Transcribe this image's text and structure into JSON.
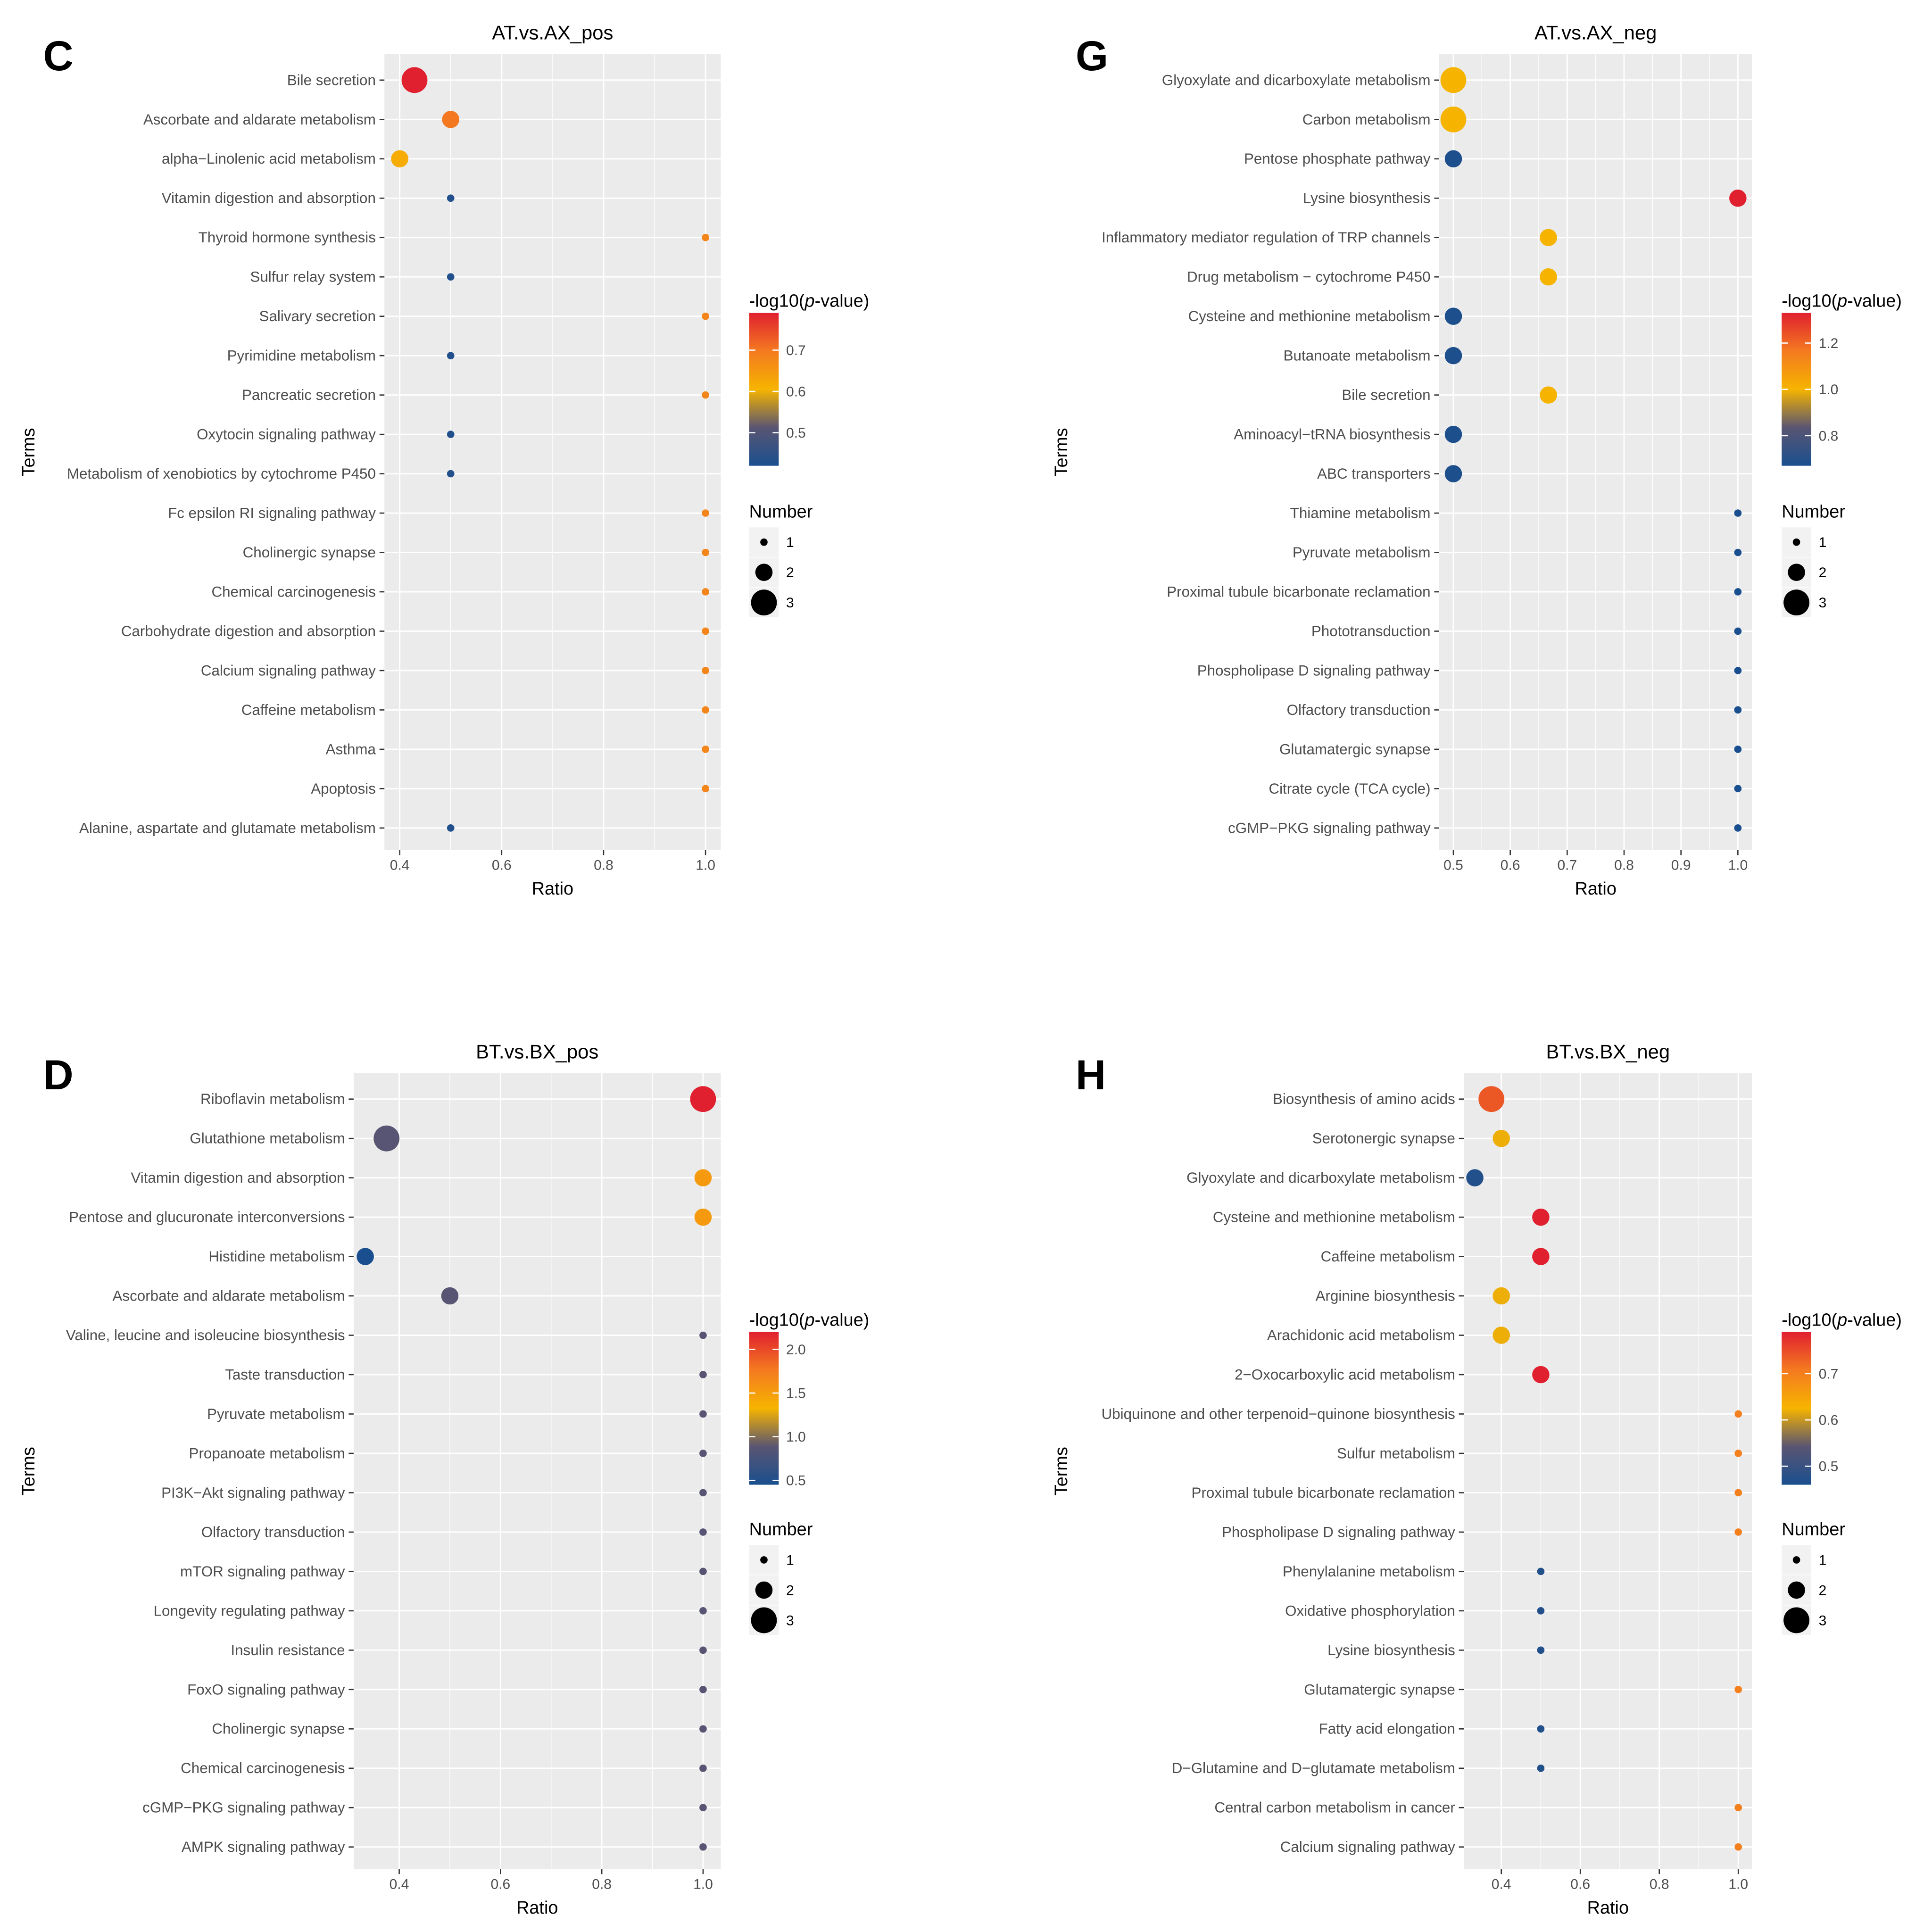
{
  "figure": {
    "common": {
      "ylabel": "Terms",
      "xlabel": "Ratio",
      "color_legend_prefix": "-log10(",
      "color_legend_p": "p",
      "color_legend_suffix": "-value)",
      "size_legend_title": "Number",
      "size_legend_items": [
        1,
        2,
        3
      ],
      "color_scale": [
        "#1a4f8f",
        "#5a5572",
        "#f6b400",
        "#f47a20",
        "#e0202f"
      ]
    }
  },
  "chart_data": [
    {
      "panel_letter": "C",
      "type": "scatter",
      "title": "AT.vs.AX_pos",
      "xlabel": "Ratio",
      "ylabel": "Terms",
      "xlim": [
        0.37,
        1.03
      ],
      "x_ticks": [
        0.4,
        0.6,
        0.8,
        1.0
      ],
      "x_tick_labels": [
        "0.4",
        "0.6",
        "0.8",
        "1.0"
      ],
      "color_range": [
        0.42,
        0.79
      ],
      "color_ticks": [
        0.5,
        0.6,
        0.7
      ],
      "color_tick_labels": [
        "0.5",
        "0.6",
        "0.7"
      ],
      "grid": true,
      "legend_position": "right",
      "terms": [
        "Bile secretion",
        "Ascorbate and aldarate metabolism",
        "alpha−Linolenic acid metabolism",
        "Vitamin digestion and absorption",
        "Thyroid hormone synthesis",
        "Sulfur relay system",
        "Salivary secretion",
        "Pyrimidine metabolism",
        "Pancreatic secretion",
        "Oxytocin signaling pathway",
        "Metabolism of xenobiotics by cytochrome P450",
        "Fc epsilon RI signaling pathway",
        "Cholinergic synapse",
        "Chemical carcinogenesis",
        "Carbohydrate digestion and absorption",
        "Calcium signaling pathway",
        "Caffeine metabolism",
        "Asthma",
        "Apoptosis",
        "Alanine, aspartate and glutamate metabolism"
      ],
      "ratio": [
        0.429,
        0.5,
        0.4,
        0.5,
        1.0,
        0.5,
        1.0,
        0.5,
        1.0,
        0.5,
        0.5,
        1.0,
        1.0,
        1.0,
        1.0,
        1.0,
        1.0,
        1.0,
        1.0,
        0.5
      ],
      "neg_log10_p": [
        0.79,
        0.7,
        0.62,
        0.43,
        0.68,
        0.43,
        0.68,
        0.43,
        0.68,
        0.43,
        0.43,
        0.68,
        0.68,
        0.68,
        0.68,
        0.68,
        0.68,
        0.68,
        0.68,
        0.43
      ],
      "number": [
        3,
        2,
        2,
        1,
        1,
        1,
        1,
        1,
        1,
        1,
        1,
        1,
        1,
        1,
        1,
        1,
        1,
        1,
        1,
        1
      ]
    },
    {
      "panel_letter": "G",
      "type": "scatter",
      "title": "AT.vs.AX_neg",
      "xlabel": "Ratio",
      "ylabel": "Terms",
      "xlim": [
        0.475,
        1.025
      ],
      "x_ticks": [
        0.5,
        0.6,
        0.7,
        0.8,
        0.9,
        1.0
      ],
      "x_tick_labels": [
        "0.5",
        "0.6",
        "0.7",
        "0.8",
        "0.9",
        "1.0"
      ],
      "color_range": [
        0.67,
        1.33
      ],
      "color_ticks": [
        0.8,
        1.0,
        1.2
      ],
      "color_tick_labels": [
        "0.8",
        "1.0",
        "1.2"
      ],
      "grid": true,
      "legend_position": "right",
      "terms": [
        "Glyoxylate and dicarboxylate metabolism",
        "Carbon metabolism",
        "Pentose phosphate pathway",
        "Lysine biosynthesis",
        "Inflammatory mediator regulation of TRP channels",
        "Drug metabolism − cytochrome P450",
        "Cysteine and methionine metabolism",
        "Butanoate metabolism",
        "Bile secretion",
        "Aminoacyl−tRNA biosynthesis",
        "ABC transporters",
        "Thiamine metabolism",
        "Pyruvate metabolism",
        "Proximal tubule bicarbonate reclamation",
        "Phototransduction",
        "Phospholipase D signaling pathway",
        "Olfactory transduction",
        "Glutamatergic synapse",
        "Citrate cycle (TCA cycle)",
        "cGMP−PKG signaling pathway"
      ],
      "ratio": [
        0.5,
        0.5,
        0.5,
        1.0,
        0.667,
        0.667,
        0.5,
        0.5,
        0.667,
        0.5,
        0.5,
        1.0,
        1.0,
        1.0,
        1.0,
        1.0,
        1.0,
        1.0,
        1.0,
        1.0
      ],
      "neg_log10_p": [
        1.0,
        1.0,
        0.68,
        1.33,
        1.0,
        1.0,
        0.68,
        0.68,
        1.0,
        0.68,
        0.68,
        0.67,
        0.67,
        0.67,
        0.67,
        0.67,
        0.67,
        0.67,
        0.67,
        0.67
      ],
      "number": [
        3,
        3,
        2,
        2,
        2,
        2,
        2,
        2,
        2,
        2,
        2,
        1,
        1,
        1,
        1,
        1,
        1,
        1,
        1,
        1
      ]
    },
    {
      "panel_letter": "D",
      "type": "scatter",
      "title": "BT.vs.BX_pos",
      "xlabel": "Ratio",
      "ylabel": "Terms",
      "xlim": [
        0.31,
        1.035
      ],
      "x_ticks": [
        0.4,
        0.6,
        0.8,
        1.0
      ],
      "x_tick_labels": [
        "0.4",
        "0.6",
        "0.8",
        "1.0"
      ],
      "color_range": [
        0.45,
        2.2
      ],
      "color_ticks": [
        0.5,
        1.0,
        1.5,
        2.0
      ],
      "color_tick_labels": [
        "0.5",
        "1.0",
        "1.5",
        "2.0"
      ],
      "grid": true,
      "legend_position": "right",
      "terms": [
        "Riboflavin metabolism",
        "Glutathione metabolism",
        "Vitamin digestion and absorption",
        "Pentose and glucuronate interconversions",
        "Histidine metabolism",
        "Ascorbate and aldarate metabolism",
        "Valine, leucine and isoleucine biosynthesis",
        "Taste transduction",
        "Pyruvate metabolism",
        "Propanoate metabolism",
        "PI3K−Akt signaling pathway",
        "Olfactory transduction",
        "mTOR signaling pathway",
        "Longevity regulating pathway",
        "Insulin resistance",
        "FoxO signaling pathway",
        "Cholinergic synapse",
        "Chemical carcinogenesis",
        "cGMP−PKG signaling pathway",
        "AMPK signaling pathway"
      ],
      "ratio": [
        1.0,
        0.375,
        1.0,
        1.0,
        0.333,
        0.5,
        1.0,
        1.0,
        1.0,
        1.0,
        1.0,
        1.0,
        1.0,
        1.0,
        1.0,
        1.0,
        1.0,
        1.0,
        1.0,
        1.0
      ],
      "neg_log10_p": [
        2.2,
        0.87,
        1.52,
        1.52,
        0.45,
        0.87,
        0.87,
        0.87,
        0.87,
        0.87,
        0.87,
        0.87,
        0.87,
        0.87,
        0.87,
        0.87,
        0.87,
        0.87,
        0.87,
        0.87
      ],
      "number": [
        3,
        3,
        2,
        2,
        2,
        2,
        1,
        1,
        1,
        1,
        1,
        1,
        1,
        1,
        1,
        1,
        1,
        1,
        1,
        1
      ]
    },
    {
      "panel_letter": "H",
      "type": "scatter",
      "title": "BT.vs.BX_neg",
      "xlabel": "Ratio",
      "ylabel": "Terms",
      "xlim": [
        0.305,
        1.035
      ],
      "x_ticks": [
        0.4,
        0.6,
        0.8,
        1.0
      ],
      "x_tick_labels": [
        "0.4",
        "0.6",
        "0.8",
        "1.0"
      ],
      "color_range": [
        0.46,
        0.79
      ],
      "color_ticks": [
        0.5,
        0.6,
        0.7
      ],
      "color_tick_labels": [
        "0.5",
        "0.6",
        "0.7"
      ],
      "grid": true,
      "legend_position": "right",
      "terms": [
        "Biosynthesis of amino acids",
        "Serotonergic synapse",
        "Glyoxylate and dicarboxylate metabolism",
        "Cysteine and methionine metabolism",
        "Caffeine metabolism",
        "Arginine biosynthesis",
        "Arachidonic acid metabolism",
        "2−Oxocarboxylic acid metabolism",
        "Ubiquinone and other terpenoid−quinone biosynthesis",
        "Sulfur metabolism",
        "Proximal tubule bicarbonate reclamation",
        "Phospholipase D signaling pathway",
        "Phenylalanine metabolism",
        "Oxidative phosphorylation",
        "Lysine biosynthesis",
        "Glutamatergic synapse",
        "Fatty acid elongation",
        "D−Glutamine and D−glutamate metabolism",
        "Central carbon metabolism in cancer",
        "Calcium signaling pathway"
      ],
      "ratio": [
        0.375,
        0.4,
        0.333,
        0.5,
        0.5,
        0.4,
        0.4,
        0.5,
        1.0,
        1.0,
        1.0,
        1.0,
        0.5,
        0.5,
        0.5,
        1.0,
        0.5,
        0.5,
        1.0,
        1.0
      ],
      "neg_log10_p": [
        0.74,
        0.62,
        0.47,
        0.79,
        0.79,
        0.62,
        0.62,
        0.79,
        0.7,
        0.7,
        0.7,
        0.7,
        0.47,
        0.47,
        0.47,
        0.7,
        0.47,
        0.47,
        0.7,
        0.7
      ],
      "number": [
        3,
        2,
        2,
        2,
        2,
        2,
        2,
        2,
        1,
        1,
        1,
        1,
        1,
        1,
        1,
        1,
        1,
        1,
        1,
        1
      ]
    }
  ]
}
